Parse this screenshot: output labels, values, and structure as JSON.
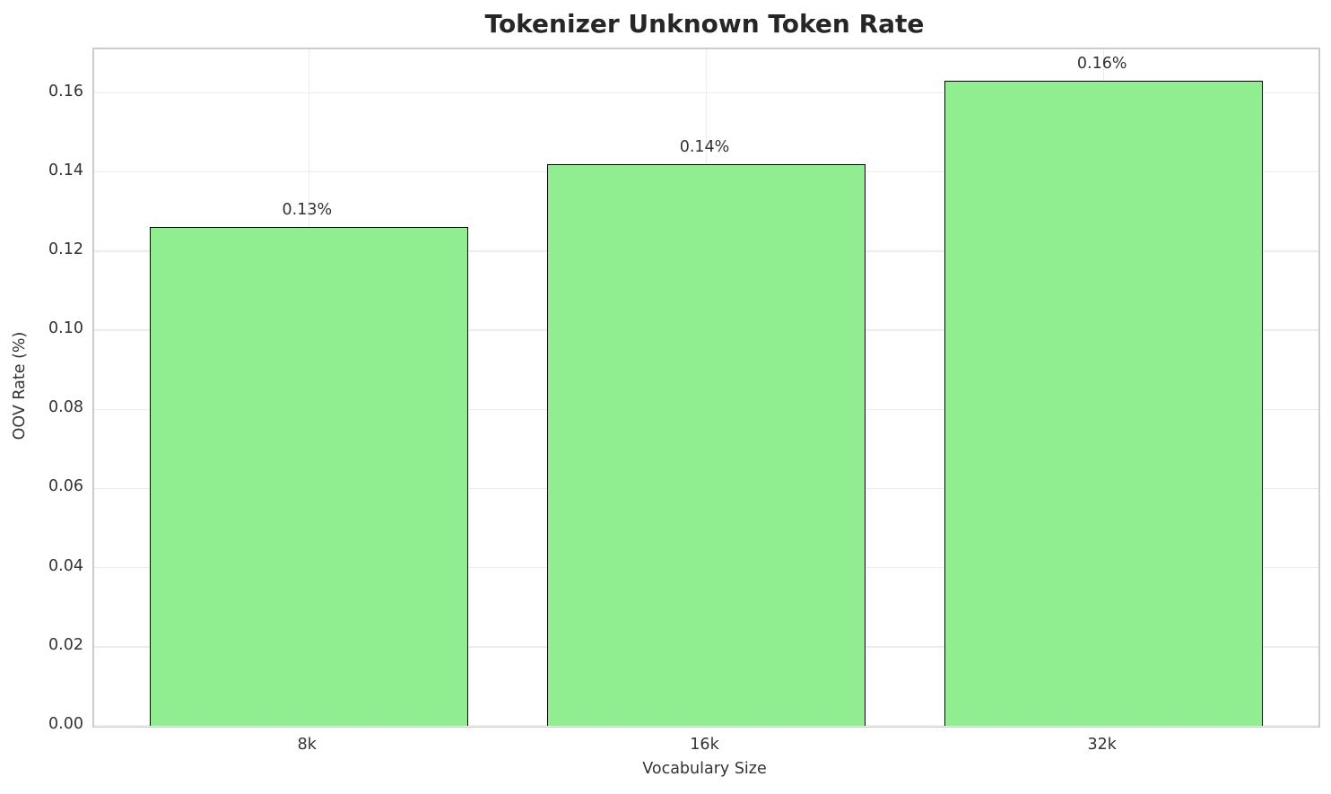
{
  "chart_data": {
    "type": "bar",
    "title": "Tokenizer Unknown Token Rate",
    "xlabel": "Vocabulary Size",
    "ylabel": "OOV Rate (%)",
    "categories": [
      "8k",
      "16k",
      "32k"
    ],
    "values": [
      0.126,
      0.142,
      0.163
    ],
    "bar_labels": [
      "0.13%",
      "0.14%",
      "0.16%"
    ],
    "ytick_values": [
      0.0,
      0.02,
      0.04,
      0.06,
      0.08,
      0.1,
      0.12,
      0.14,
      0.16
    ],
    "ytick_labels": [
      "0.00",
      "0.02",
      "0.04",
      "0.06",
      "0.08",
      "0.10",
      "0.12",
      "0.14",
      "0.16"
    ],
    "ylim": [
      0,
      0.171
    ],
    "bar_width_fraction": 0.8,
    "x_margin": 0.54,
    "grid": "on",
    "legend": "none",
    "colors": {
      "bar_fill": "#90EE90",
      "bar_edge": "#000000",
      "grid": "#ececec",
      "spine": "#cccccc",
      "tick_text": "#333333",
      "title_text": "#262626"
    }
  }
}
